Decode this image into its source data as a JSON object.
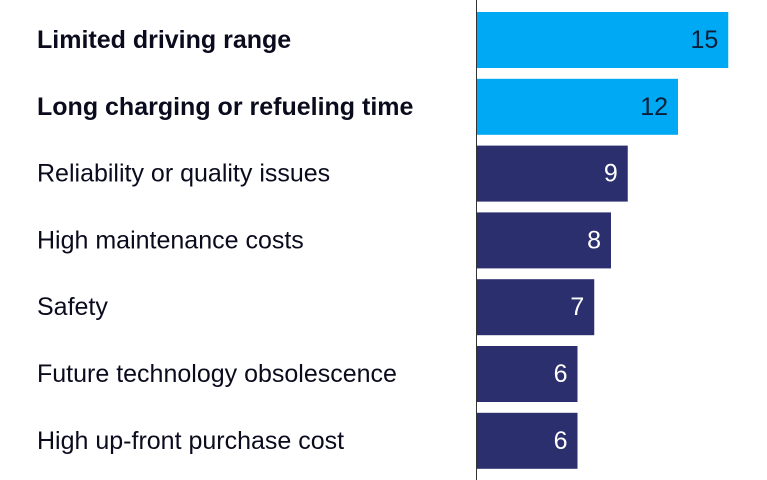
{
  "chart_data": {
    "type": "bar",
    "orientation": "horizontal",
    "categories": [
      "Limited driving range",
      "Long charging or refueling time",
      "Reliability or quality issues",
      "High maintenance costs",
      "Safety",
      "Future technology obsolescence",
      "High up-front purchase cost"
    ],
    "values": [
      15,
      12,
      9,
      8,
      7,
      6,
      6
    ],
    "highlighted": [
      true,
      true,
      false,
      false,
      false,
      false,
      false
    ],
    "colors": {
      "highlight": "#00a9f4",
      "default": "#2b2f6e",
      "highlight_text": "#0b1f3a",
      "default_text": "#ffffff",
      "axis": "#333333"
    },
    "title": "",
    "xlabel": "",
    "ylabel": "",
    "xlim": [
      0,
      15
    ],
    "grid": false,
    "legend": "none"
  }
}
